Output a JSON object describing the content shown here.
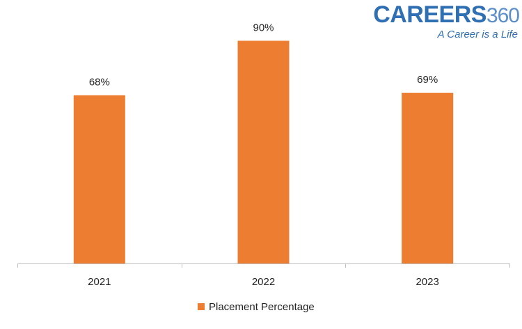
{
  "logo": {
    "brand_word": "CAREERS",
    "brand_number": "360",
    "tagline": "A Career is a Life"
  },
  "colors": {
    "bar": "#ed7d31",
    "axis": "#bfbfbf",
    "text": "#222222",
    "logo_blue": "#2f6fb3"
  },
  "chart_data": {
    "type": "bar",
    "title": "",
    "xlabel": "",
    "ylabel": "",
    "categories": [
      "2021",
      "2022",
      "2023"
    ],
    "series": [
      {
        "name": "Placement Percentage",
        "values": [
          68,
          90,
          69
        ],
        "data_labels": [
          "68%",
          "90%",
          "69%"
        ]
      }
    ],
    "ylim": [
      0,
      100
    ],
    "grid": false,
    "legend_position": "bottom"
  },
  "legend": {
    "label": "Placement Percentage"
  }
}
